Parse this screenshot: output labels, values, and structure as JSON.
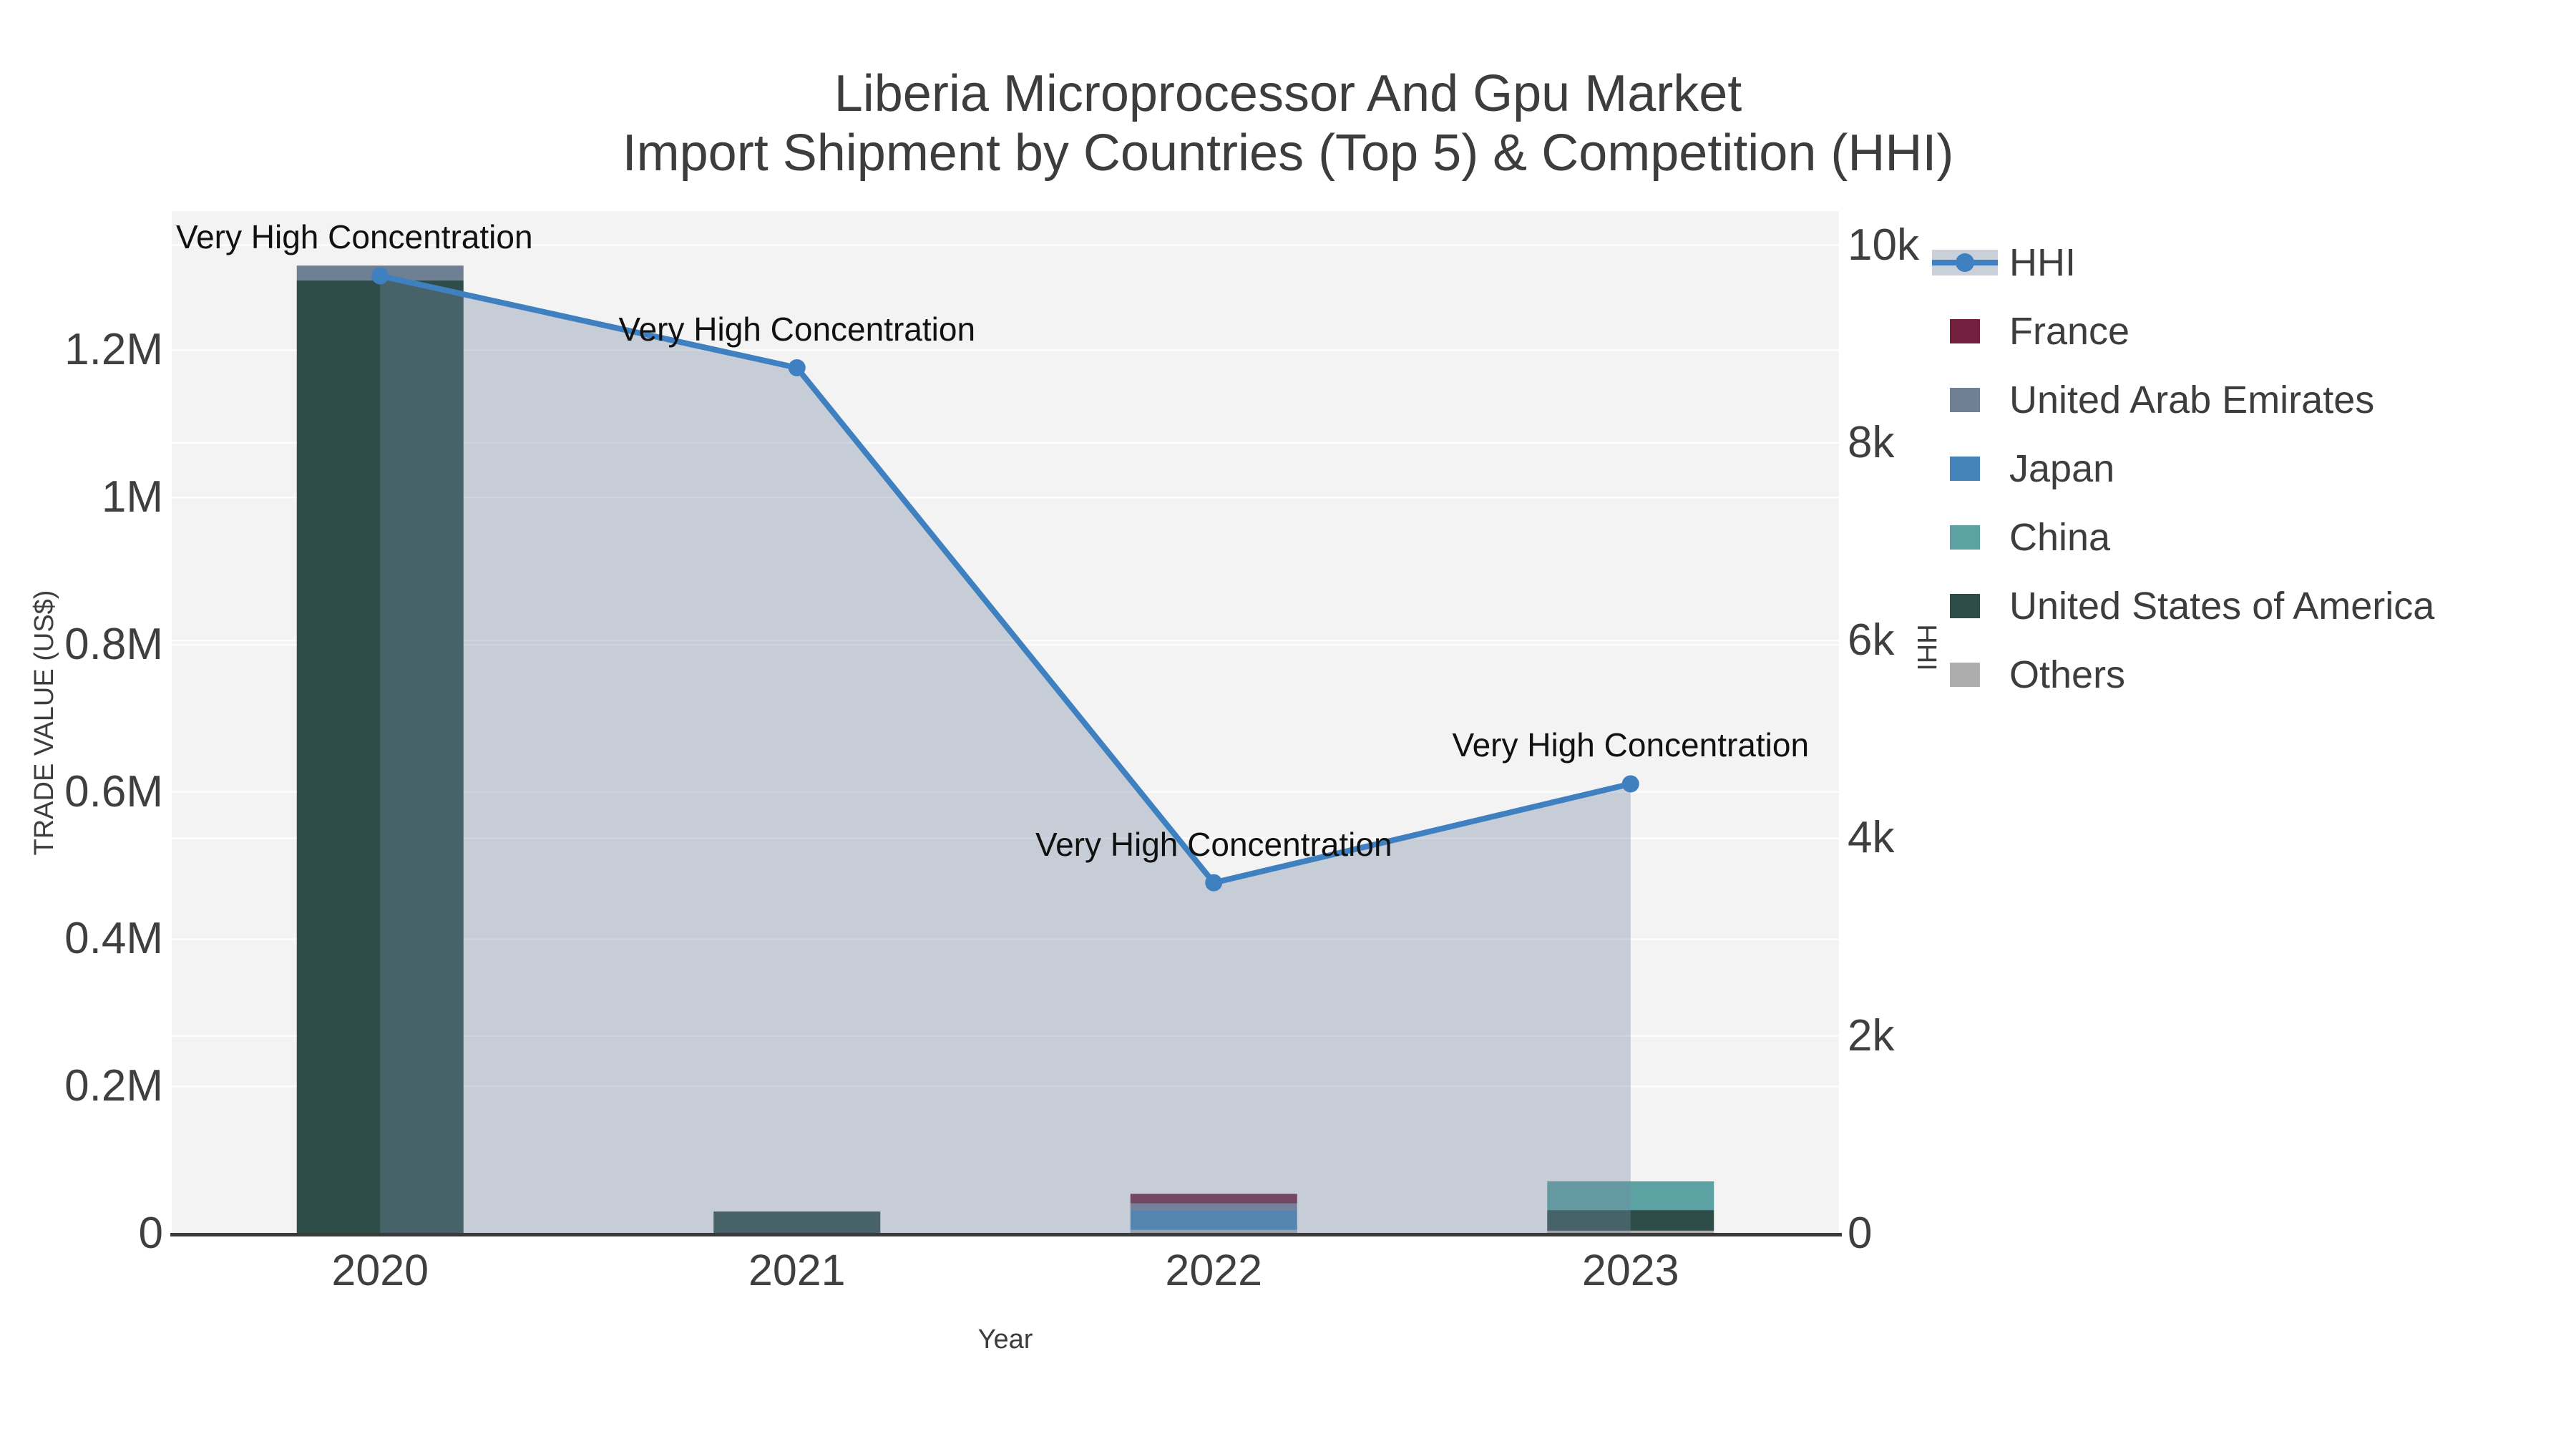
{
  "title": {
    "line1": "Liberia Microprocessor And Gpu Market",
    "line2": "Import Shipment by Countries (Top 5) & Competition (HHI)"
  },
  "axes": {
    "x": {
      "title": "Year",
      "tick_labels": [
        "2020",
        "2021",
        "2022",
        "2023"
      ]
    },
    "y_left": {
      "title": "TRADE VALUE (US$)",
      "tick_labels": [
        "0",
        "0.2M",
        "0.4M",
        "0.6M",
        "0.8M",
        "1M",
        "1.2M"
      ],
      "tick_values": [
        0,
        200000,
        400000,
        600000,
        800000,
        1000000,
        1200000
      ],
      "range": [
        0,
        1389000
      ]
    },
    "y_right": {
      "title": "HHI",
      "tick_labels": [
        "0",
        "2k",
        "4k",
        "6k",
        "8k",
        "10k"
      ],
      "tick_values": [
        0,
        2000,
        4000,
        6000,
        8000,
        10000
      ],
      "range": [
        0,
        10345
      ]
    }
  },
  "chart_data": {
    "type": "bar+line",
    "title": "Liberia Microprocessor And Gpu Market — Import Shipment by Countries (Top 5) & Competition (HHI)",
    "categories": [
      "2020",
      "2021",
      "2022",
      "2023"
    ],
    "stack_order_bottom_to_top": [
      "Others",
      "United States of America",
      "China",
      "Japan",
      "United Arab Emirates",
      "France"
    ],
    "series": [
      {
        "name": "France",
        "type": "bar",
        "color": "#73203f",
        "values": [
          0,
          0,
          13000,
          0
        ]
      },
      {
        "name": "United Arab Emirates",
        "type": "bar",
        "color": "#6f7f94",
        "values": [
          20000,
          0,
          9000,
          0
        ]
      },
      {
        "name": "Japan",
        "type": "bar",
        "color": "#4583bb",
        "values": [
          0,
          0,
          27000,
          0
        ]
      },
      {
        "name": "China",
        "type": "bar",
        "color": "#5ca2a2",
        "values": [
          0,
          0,
          0,
          39000
        ]
      },
      {
        "name": "United States of America",
        "type": "bar",
        "color": "#2e4c48",
        "values": [
          1295000,
          30000,
          0,
          28000
        ]
      },
      {
        "name": "Others",
        "type": "bar",
        "color": "#adadad",
        "values": [
          0,
          0,
          5000,
          4000
        ]
      }
    ],
    "line_series": {
      "name": "HHI",
      "axis": "right",
      "color": "#3e80c0",
      "area_fill": "rgba(119,139,164,0.36)",
      "values": [
        9690,
        8760,
        3550,
        4550
      ]
    },
    "annotations": [
      {
        "text": "Very High Concentration",
        "category": "2020",
        "xshift": -36
      },
      {
        "text": "Very High Concentration",
        "category": "2021",
        "xshift": 0
      },
      {
        "text": "Very High Concentration",
        "category": "2022",
        "xshift": 0
      },
      {
        "text": "Very High Concentration",
        "category": "2023",
        "xshift": 0
      }
    ],
    "xlabel": "Year",
    "ylabel_left": "TRADE VALUE (US$)",
    "ylabel_right": "HHI",
    "ylim_left": [
      0,
      1389000
    ],
    "ylim_right": [
      0,
      10345
    ],
    "grid": true,
    "legend_position": "top-right"
  },
  "legend": {
    "items": [
      {
        "label": "HHI",
        "type": "line",
        "color": "#3e80c0",
        "band_color": "#c9d0da"
      },
      {
        "label": "France",
        "type": "swatch",
        "color": "#73203f"
      },
      {
        "label": "United Arab Emirates",
        "type": "swatch",
        "color": "#6f7f94"
      },
      {
        "label": "Japan",
        "type": "swatch",
        "color": "#4583bb"
      },
      {
        "label": "China",
        "type": "swatch",
        "color": "#5ca2a2"
      },
      {
        "label": "United States of America",
        "type": "swatch",
        "color": "#2e4c48"
      },
      {
        "label": "Others",
        "type": "swatch",
        "color": "#adadad"
      }
    ]
  },
  "colors": {
    "plot_bg": "#f3f3f3",
    "grid": "#ffffff",
    "axis_line": "#3a3a3a",
    "text": "#3d3d3d",
    "annotation_text": "#111111"
  }
}
